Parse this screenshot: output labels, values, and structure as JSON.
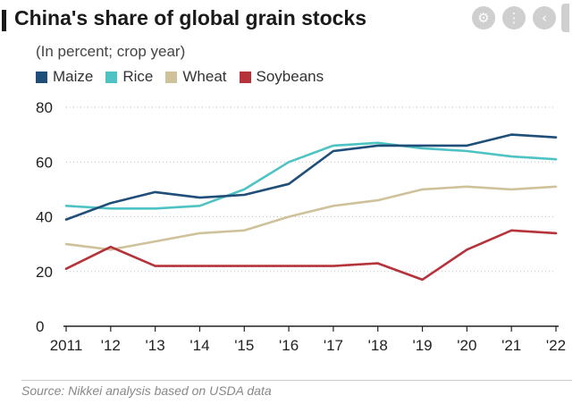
{
  "header": {
    "title": "China's share of global grain stocks",
    "subtitle": "(In percent; crop year)"
  },
  "toolbar": {
    "icons": [
      "settings-icon",
      "more-options-icon",
      "back-icon"
    ]
  },
  "footer": {
    "source": "Source: Nikkei analysis based on USDA data"
  },
  "colors": {
    "maize": "#1f4e79",
    "rice": "#4fc3c3",
    "wheat": "#cfc29a",
    "soybeans": "#b5333a",
    "grid": "#bdbdbd",
    "axis": "#222222"
  },
  "chart_data": {
    "type": "line",
    "title": "China's share of global grain stocks",
    "subtitle": "(In percent; crop year)",
    "xlabel": "",
    "ylabel": "",
    "categories": [
      "2011",
      "'12",
      "'13",
      "'14",
      "'15",
      "'16",
      "'17",
      "'18",
      "'19",
      "'20",
      "'21",
      "'22"
    ],
    "ylim": [
      0,
      80
    ],
    "yticks": [
      0,
      20,
      40,
      60,
      80
    ],
    "grid": "horizontal-dotted",
    "legend": "top-left",
    "series": [
      {
        "name": "Maize",
        "color": "#1f4e79",
        "values": [
          39,
          45,
          49,
          47,
          48,
          52,
          64,
          66,
          66,
          66,
          70,
          69
        ]
      },
      {
        "name": "Rice",
        "color": "#4fc3c3",
        "values": [
          44,
          43,
          43,
          44,
          50,
          60,
          66,
          67,
          65,
          64,
          62,
          61
        ]
      },
      {
        "name": "Wheat",
        "color": "#cfc29a",
        "values": [
          30,
          28,
          31,
          34,
          35,
          40,
          44,
          46,
          50,
          51,
          50,
          51
        ]
      },
      {
        "name": "Soybeans",
        "color": "#b5333a",
        "values": [
          21,
          29,
          22,
          22,
          22,
          22,
          22,
          23,
          17,
          28,
          35,
          34
        ]
      }
    ]
  }
}
